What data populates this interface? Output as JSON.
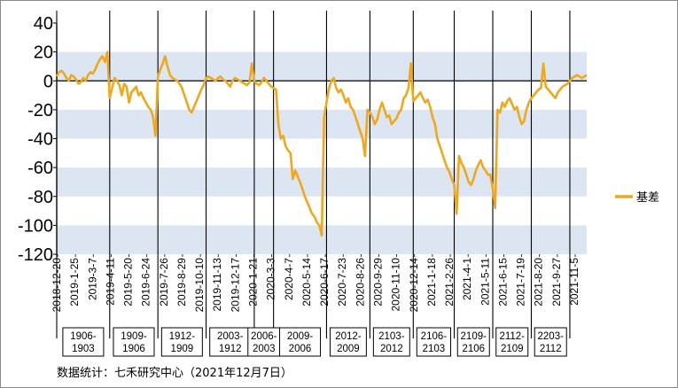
{
  "chart_data": {
    "type": "line",
    "title": "",
    "xlabel": "",
    "ylabel": "",
    "ylim": [
      -120,
      40
    ],
    "yticks": [
      40,
      20,
      0,
      -20,
      -40,
      -60,
      -80,
      -100,
      -120
    ],
    "x_tick_labels": [
      "2018-12-20",
      "2019-1-25",
      "2019-3-7",
      "2019-4-11",
      "2019-5-20",
      "2019-6-24",
      "2019-7-26",
      "2019-8-29",
      "2019-10-10",
      "2019-11-13",
      "2019-12-17",
      "2020-1-21",
      "2020-3-3",
      "2020-4-7",
      "2020-5-14",
      "2020-6-17",
      "2020-7-23",
      "2020-8-26",
      "2020-9-29",
      "2020-11-10",
      "2020-12-14",
      "2021-1-18",
      "2021-2-26",
      "2021-4-1",
      "2021-5-11",
      "2021-6-15",
      "2021-7-19",
      "2021-8-20",
      "2021-9-27",
      "2021-11-5"
    ],
    "band_ranges": [
      [
        0,
        20
      ],
      [
        -40,
        -20
      ],
      [
        -80,
        -60
      ],
      [
        -120,
        -100
      ]
    ],
    "grid": false,
    "legend_position": "right",
    "series": [
      {
        "name": "基差",
        "color": "#F0A81A",
        "values": [
          3,
          6,
          7,
          5,
          2,
          0,
          4,
          3,
          1,
          -2,
          -1,
          2,
          0,
          4,
          6,
          5,
          8,
          12,
          15,
          17,
          13,
          20,
          -12,
          -5,
          2,
          0,
          -3,
          -10,
          -2,
          -4,
          -15,
          -8,
          -6,
          -4,
          -10,
          -8,
          -12,
          -15,
          -18,
          -20,
          -25,
          -38,
          3,
          8,
          12,
          17,
          10,
          4,
          2,
          1,
          0,
          -2,
          -5,
          -10,
          -15,
          -20,
          -22,
          -18,
          -14,
          -10,
          -6,
          -3,
          2,
          3,
          2,
          1,
          0,
          2,
          3,
          1,
          0,
          -2,
          -4,
          0,
          2,
          1,
          0,
          -1,
          -2,
          -3,
          -1,
          12,
          0,
          -2,
          -3,
          -1,
          2,
          0,
          -2,
          -4,
          -5,
          -6,
          -30,
          -40,
          -38,
          -45,
          -48,
          -50,
          -68,
          -62,
          -66,
          -70,
          -75,
          -80,
          -84,
          -88,
          -92,
          -94,
          -98,
          -100,
          -107,
          -25,
          -15,
          -5,
          0,
          2,
          -5,
          -8,
          -6,
          -10,
          -15,
          -12,
          -18,
          -20,
          -25,
          -30,
          -35,
          -40,
          -52,
          -20,
          -22,
          -25,
          -30,
          -27,
          -20,
          -15,
          -20,
          -25,
          -24,
          -30,
          -28,
          -26,
          -22,
          -20,
          -12,
          -10,
          -5,
          12,
          -14,
          -12,
          -10,
          -8,
          -12,
          -15,
          -13,
          -18,
          -25,
          -30,
          -40,
          -45,
          -50,
          -55,
          -60,
          -63,
          -68,
          -72,
          -92,
          -52,
          -57,
          -60,
          -65,
          -70,
          -72,
          -68,
          -62,
          -58,
          -55,
          -60,
          -62,
          -65,
          -65,
          -75,
          -88,
          -20,
          -22,
          -15,
          -18,
          -14,
          -12,
          -16,
          -20,
          -18,
          -25,
          -30,
          -28,
          -20,
          -15,
          -12,
          -10,
          -8,
          -6,
          -5,
          12,
          -4,
          -6,
          -8,
          -10,
          -12,
          -8,
          -6,
          -4,
          -3,
          -2,
          0,
          2,
          3,
          4,
          3,
          2,
          3,
          4
        ]
      }
    ],
    "expiry_line_indices": [
      0,
      22,
      42,
      62,
      82,
      90,
      112,
      130,
      148,
      165,
      181,
      197,
      213
    ],
    "contract_labels": [
      [
        "1906-",
        "1903"
      ],
      [
        "1909-",
        "1906"
      ],
      [
        "1912-",
        "1909"
      ],
      [
        "2003-",
        "1912"
      ],
      [
        "2006-",
        "2003"
      ],
      [
        "2009-",
        "2006"
      ],
      [
        "2012-",
        "2009"
      ],
      [
        "2103-",
        "2012"
      ],
      [
        "2106-",
        "2103"
      ],
      [
        "2109-",
        "2106"
      ],
      [
        "2112-",
        "2109"
      ],
      [
        "2203-",
        "2112"
      ]
    ]
  },
  "legend": {
    "label": "基差"
  },
  "source_note": "数据统计：七禾研究中心（2021年12月7日）"
}
